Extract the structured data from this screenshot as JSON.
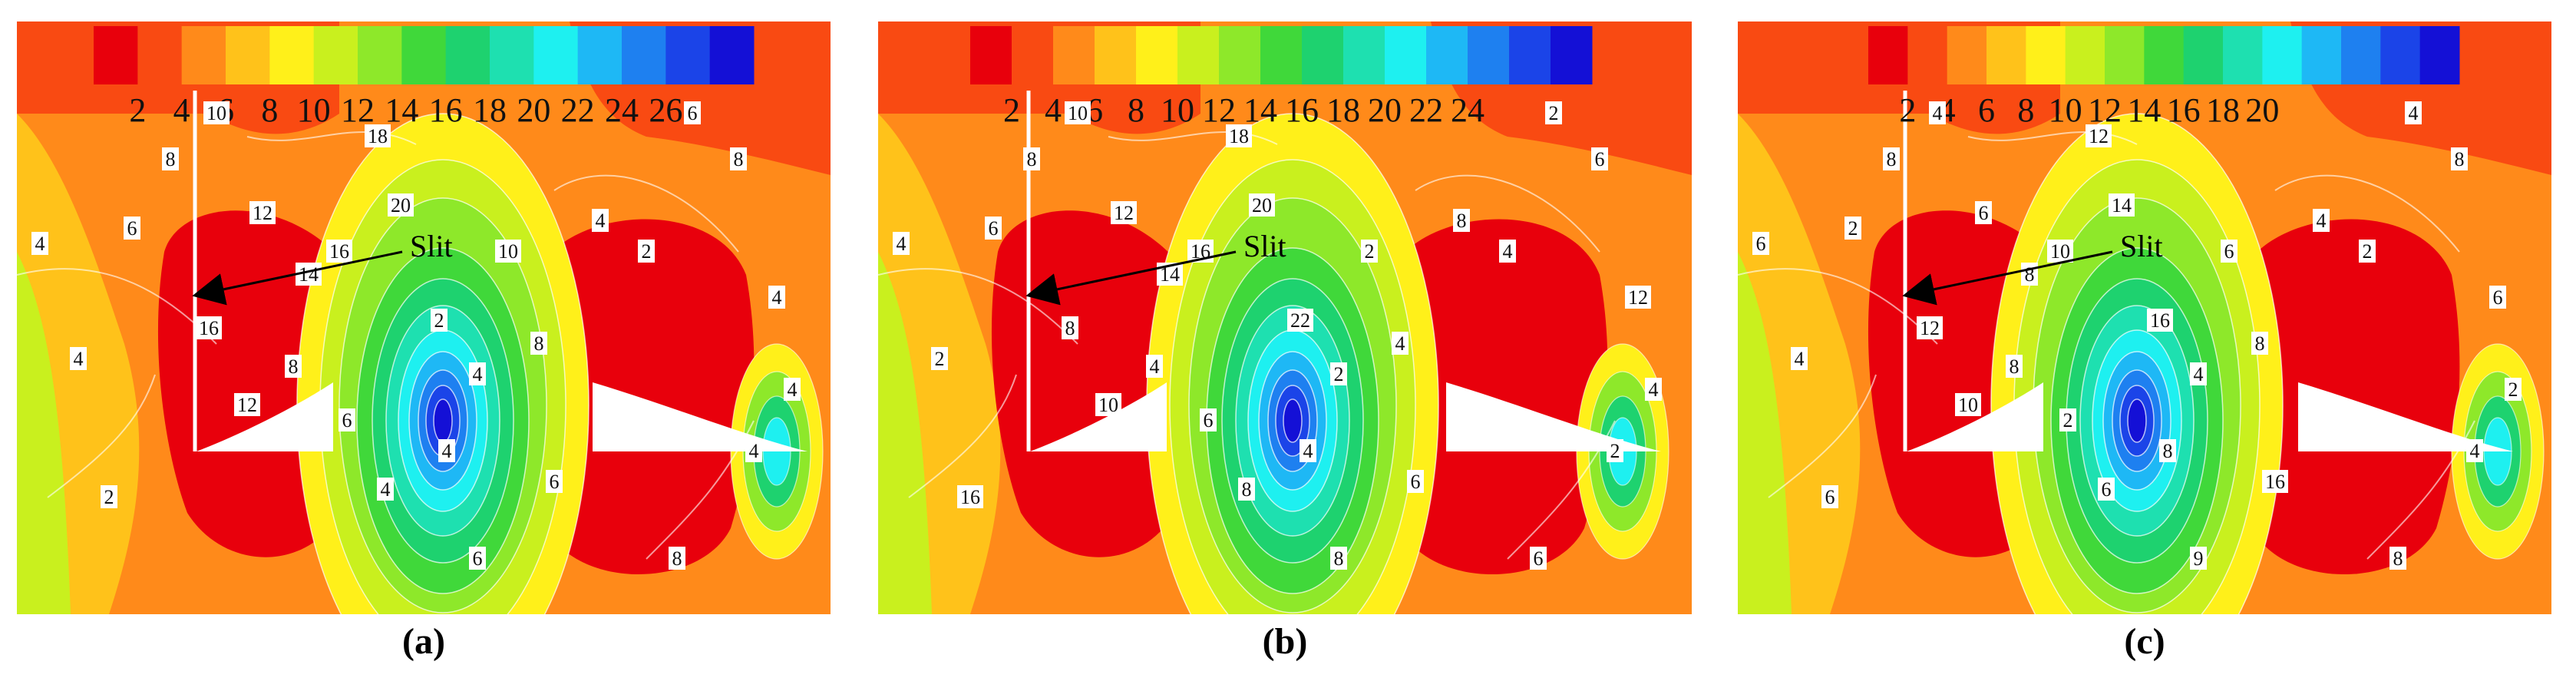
{
  "colorbar_palette": [
    "#e8000c",
    "#f94a12",
    "#ff8a1a",
    "#ffc21a",
    "#fff01a",
    "#c9f01e",
    "#8ee82a",
    "#40d83a",
    "#1ed26f",
    "#1ee0b0",
    "#1ef0f0",
    "#1eb8f5",
    "#1e80f0",
    "#1b44e8",
    "#1410d6"
  ],
  "panels": [
    {
      "caption": "(a)",
      "slit_label": "Slit",
      "colorbar_ticks": [
        "2",
        "4",
        "6",
        "8",
        "10",
        "12",
        "14",
        "16",
        "18",
        "20",
        "22",
        "24",
        "26"
      ],
      "contour_labels": [
        "4",
        "6",
        "8",
        "10",
        "12",
        "14",
        "16",
        "18",
        "20",
        "2",
        "4",
        "4",
        "4",
        "6",
        "8",
        "12",
        "16",
        "10",
        "8",
        "6",
        "4",
        "2",
        "6",
        "8",
        "4",
        "4",
        "4",
        "8",
        "6",
        "2",
        "4"
      ]
    },
    {
      "caption": "(b)",
      "slit_label": "Slit",
      "colorbar_ticks": [
        "2",
        "4",
        "6",
        "8",
        "10",
        "12",
        "14",
        "16",
        "18",
        "20",
        "22",
        "24"
      ],
      "contour_labels": [
        "4",
        "6",
        "8",
        "10",
        "12",
        "14",
        "16",
        "18",
        "20",
        "22",
        "2",
        "4",
        "8",
        "6",
        "4",
        "10",
        "8",
        "2",
        "4",
        "6",
        "8",
        "4",
        "2",
        "6",
        "12",
        "4",
        "2",
        "6",
        "8",
        "16",
        "2"
      ]
    },
    {
      "caption": "(c)",
      "slit_label": "Slit",
      "colorbar_ticks": [
        "2",
        "4",
        "6",
        "8",
        "10",
        "12",
        "14",
        "16",
        "18",
        "20"
      ],
      "contour_labels": [
        "6",
        "2",
        "8",
        "4",
        "6",
        "8",
        "10",
        "12",
        "14",
        "16",
        "4",
        "8",
        "6",
        "2",
        "8",
        "10",
        "12",
        "6",
        "8",
        "16",
        "4",
        "2",
        "4",
        "8",
        "6",
        "2",
        "4",
        "8",
        "9",
        "6",
        "4"
      ]
    }
  ]
}
